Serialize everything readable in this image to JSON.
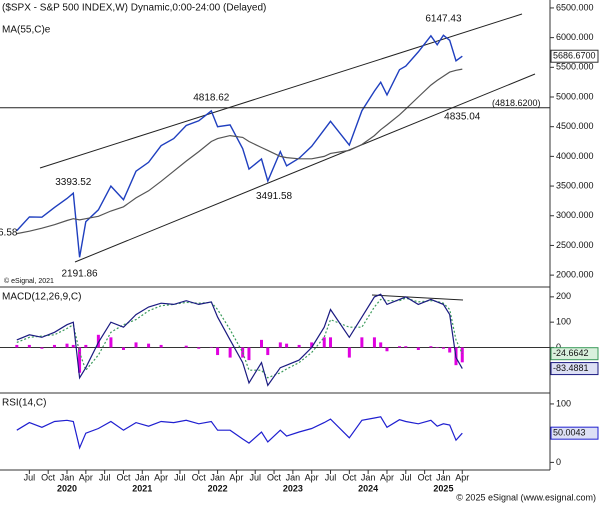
{
  "chart_data": [
    {
      "type": "line",
      "x": [
        "2019-05",
        "2019-07",
        "2019-09",
        "2019-11",
        "2020-01",
        "2020-02",
        "2020-03",
        "2020-04",
        "2020-06",
        "2020-08",
        "2020-10",
        "2020-12",
        "2021-02",
        "2021-04",
        "2021-06",
        "2021-08",
        "2021-10",
        "2021-12",
        "2022-01",
        "2022-03",
        "2022-05",
        "2022-06",
        "2022-08",
        "2022-09",
        "2022-11",
        "2022-12",
        "2023-02",
        "2023-04",
        "2023-06",
        "2023-07",
        "2023-10",
        "2023-12",
        "2024-02",
        "2024-03",
        "2024-04",
        "2024-06",
        "2024-07",
        "2024-09",
        "2024-11",
        "2024-12",
        "2025-01",
        "2025-02",
        "2025-03",
        "2025-04"
      ],
      "series": [
        {
          "name": "($SPX - S&P 500 INDEX,W) Dynamic,0:00-24:00 (Delayed)",
          "color": "#1f3fbf",
          "values": [
            2750,
            2980,
            2976,
            3140,
            3290,
            3380,
            2300,
            2900,
            3100,
            3500,
            3270,
            3750,
            3900,
            4180,
            4300,
            4520,
            4600,
            4766,
            4500,
            4530,
            4130,
            3785,
            3955,
            3585,
            4080,
            3840,
            3970,
            4170,
            4450,
            4590,
            4190,
            4770,
            5100,
            5250,
            5035,
            5460,
            5520,
            5760,
            6030,
            5880,
            6040,
            5955,
            5610,
            5687
          ]
        },
        {
          "name": "MA(55,C)e",
          "color": "#555555",
          "values": [
            2700,
            2740,
            2790,
            2850,
            2920,
            2950,
            2930,
            2950,
            2990,
            3080,
            3150,
            3300,
            3420,
            3580,
            3750,
            3920,
            4080,
            4250,
            4300,
            4350,
            4320,
            4250,
            4150,
            4100,
            4000,
            3980,
            3960,
            3960,
            4000,
            4050,
            4100,
            4200,
            4350,
            4450,
            4530,
            4700,
            4800,
            5000,
            5200,
            5280,
            5350,
            5420,
            5450,
            5470
          ]
        }
      ],
      "xlim": [
        "2019-02",
        "2026-02"
      ],
      "ylim": [
        1800,
        6600
      ],
      "yticks": [
        {
          "value": 2000,
          "label": "2000.000"
        },
        {
          "value": 2500,
          "label": "2500.000"
        },
        {
          "value": 3000,
          "label": "3000.000"
        },
        {
          "value": 3500,
          "label": "3500.000"
        },
        {
          "value": 4000,
          "label": "4000.000"
        },
        {
          "value": 4500,
          "label": "4500.000"
        },
        {
          "value": 5000,
          "label": "5000.000"
        },
        {
          "value": 5500,
          "label": "5500.000"
        },
        {
          "value": 6000,
          "label": "6000.000"
        },
        {
          "value": 6500,
          "label": "6500.000"
        }
      ],
      "annotations": [
        {
          "x": "2025-01",
          "value": 6147.43
        },
        {
          "x": "2021-12",
          "value": 4818.62
        },
        {
          "x": "2020-02",
          "value": 3393.52
        },
        {
          "x": "2022-10",
          "value": 3491.58
        },
        {
          "x": "2020-03",
          "value": 2191.86
        },
        {
          "x": "2025-04",
          "value": 4835.04
        },
        {
          "x": "2019-02",
          "value": 2540,
          "label": "6.58"
        }
      ],
      "level": {
        "value": 4818.62,
        "label": "(4818.6200)"
      },
      "last_label": {
        "value": 5686.67,
        "label": "5686.6700"
      },
      "watermark": "© eSignal, 2021"
    },
    {
      "type": "macd",
      "title": "MACD(12,26,9,C)",
      "x": [
        "2019-05",
        "2019-07",
        "2019-09",
        "2019-11",
        "2020-01",
        "2020-02",
        "2020-03",
        "2020-04",
        "2020-06",
        "2020-08",
        "2020-10",
        "2020-12",
        "2021-02",
        "2021-04",
        "2021-06",
        "2021-08",
        "2021-10",
        "2021-12",
        "2022-01",
        "2022-03",
        "2022-05",
        "2022-06",
        "2022-08",
        "2022-09",
        "2022-11",
        "2022-12",
        "2023-02",
        "2023-04",
        "2023-06",
        "2023-07",
        "2023-10",
        "2023-12",
        "2024-02",
        "2024-03",
        "2024-04",
        "2024-06",
        "2024-07",
        "2024-09",
        "2024-11",
        "2024-12",
        "2025-01",
        "2025-02",
        "2025-03",
        "2025-04"
      ],
      "series": [
        {
          "color": "#e000e0",
          "bars": true,
          "values": [
            10,
            10,
            -5,
            10,
            15,
            10,
            -100,
            10,
            50,
            40,
            -10,
            20,
            15,
            10,
            0,
            7,
            -5,
            2,
            -30,
            -40,
            -40,
            -50,
            30,
            -30,
            20,
            15,
            10,
            20,
            40,
            40,
            -40,
            40,
            40,
            20,
            -15,
            5,
            5,
            -10,
            5,
            -2,
            -5,
            -20,
            -70,
            -58.82
          ]
        },
        {
          "color": "#3a9a5a",
          "dashed": true,
          "values": [
            20,
            40,
            45,
            50,
            75,
            90,
            -20,
            -90,
            -30,
            60,
            90,
            110,
            145,
            165,
            170,
            178,
            175,
            178,
            150,
            70,
            -20,
            -90,
            -90,
            -120,
            -100,
            -85,
            -60,
            -20,
            40,
            110,
            80,
            80,
            160,
            190,
            185,
            185,
            195,
            180,
            185,
            182,
            175,
            150,
            30,
            -24.6642
          ],
          "last_label": "-24.6642"
        },
        {
          "color": "#1a1a80",
          "values": [
            30,
            50,
            40,
            60,
            90,
            100,
            -120,
            -80,
            20,
            100,
            80,
            130,
            160,
            175,
            170,
            185,
            170,
            180,
            120,
            30,
            -60,
            -140,
            -60,
            -150,
            -80,
            -70,
            -50,
            0,
            80,
            150,
            40,
            120,
            200,
            210,
            170,
            190,
            200,
            170,
            190,
            180,
            170,
            130,
            -40,
            -83.4881
          ],
          "last_label": "-83.4881"
        }
      ],
      "xlim": [
        "2019-02",
        "2026-02"
      ],
      "ylim": [
        -180,
        235
      ],
      "yticks": [
        0,
        100,
        200
      ]
    },
    {
      "type": "line",
      "title": "RSI(14,C)",
      "x": [
        "2019-05",
        "2019-07",
        "2019-09",
        "2019-11",
        "2020-01",
        "2020-02",
        "2020-03",
        "2020-04",
        "2020-06",
        "2020-08",
        "2020-10",
        "2020-12",
        "2021-02",
        "2021-04",
        "2021-06",
        "2021-08",
        "2021-10",
        "2021-12",
        "2022-01",
        "2022-03",
        "2022-05",
        "2022-06",
        "2022-08",
        "2022-09",
        "2022-11",
        "2022-12",
        "2023-02",
        "2023-04",
        "2023-06",
        "2023-07",
        "2023-10",
        "2023-12",
        "2024-02",
        "2024-03",
        "2024-04",
        "2024-06",
        "2024-07",
        "2024-09",
        "2024-11",
        "2024-12",
        "2025-01",
        "2025-02",
        "2025-03",
        "2025-04"
      ],
      "series": [
        {
          "color": "#1f1fd0",
          "values": [
            55,
            68,
            60,
            70,
            72,
            70,
            25,
            50,
            58,
            70,
            55,
            68,
            62,
            70,
            68,
            72,
            66,
            70,
            55,
            55,
            40,
            33,
            52,
            35,
            55,
            45,
            52,
            58,
            68,
            74,
            42,
            72,
            76,
            78,
            60,
            73,
            70,
            66,
            72,
            62,
            66,
            64,
            38,
            50.0043
          ],
          "last_label": "50.0043"
        }
      ],
      "xlim": [
        "2019-02",
        "2026-02"
      ],
      "ylim": [
        -13,
        117
      ],
      "yticks": [
        0,
        50,
        100
      ],
      "xticks": [
        {
          "value": "2019-07",
          "label": "Jul"
        },
        {
          "value": "2019-10",
          "label": "Oct"
        },
        {
          "value": "2020-01",
          "label": "Jan"
        },
        {
          "value": "2020-04",
          "label": "Apr"
        },
        {
          "value": "2020-07",
          "label": "Jul"
        },
        {
          "value": "2020-10",
          "label": "Oct"
        },
        {
          "value": "2021-01",
          "label": "Jan"
        },
        {
          "value": "2021-04",
          "label": "Apr"
        },
        {
          "value": "2021-07",
          "label": "Jul"
        },
        {
          "value": "2021-10",
          "label": "Oct"
        },
        {
          "value": "2022-01",
          "label": "Jan"
        },
        {
          "value": "2022-04",
          "label": "Apr"
        },
        {
          "value": "2022-07",
          "label": "Jul"
        },
        {
          "value": "2022-10",
          "label": "Oct"
        },
        {
          "value": "2023-01",
          "label": "Jan"
        },
        {
          "value": "2023-04",
          "label": "Apr"
        },
        {
          "value": "2023-07",
          "label": "Jul"
        },
        {
          "value": "2023-10",
          "label": "Oct"
        },
        {
          "value": "2024-01",
          "label": "Jan"
        },
        {
          "value": "2024-04",
          "label": "Apr"
        },
        {
          "value": "2024-07",
          "label": "Jul"
        },
        {
          "value": "2024-10",
          "label": "Oct"
        },
        {
          "value": "2025-01",
          "label": "Jan"
        },
        {
          "value": "2025-04",
          "label": "Apr"
        }
      ],
      "year_ticks": [
        {
          "value": "2020-01",
          "label": "2020"
        },
        {
          "value": "2021-01",
          "label": "2021"
        },
        {
          "value": "2022-01",
          "label": "2022"
        },
        {
          "value": "2023-01",
          "label": "2023"
        },
        {
          "value": "2024-01",
          "label": "2024"
        },
        {
          "value": "2025-01",
          "label": "2025"
        }
      ]
    }
  ],
  "footer": "© 2025 eSignal (www.esignal.com)"
}
